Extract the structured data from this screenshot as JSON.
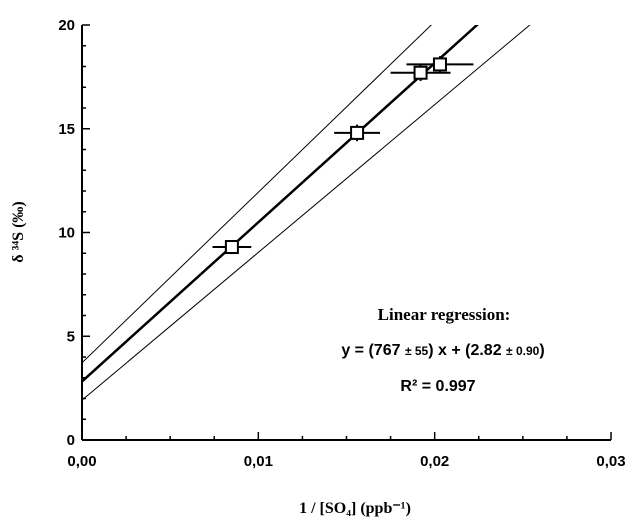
{
  "chart_data": {
    "type": "scatter",
    "xlabel": "1 / [SO₄]   (ppb⁻¹)",
    "ylabel": "δ ³⁴S (‰)",
    "xlim": [
      0,
      0.03
    ],
    "ylim": [
      0,
      20
    ],
    "x_ticks": [
      "0,00",
      "0,01",
      "0,02",
      "0,03"
    ],
    "y_ticks": [
      "0",
      "5",
      "10",
      "15",
      "20"
    ],
    "series": [
      {
        "marker": "open-square",
        "points": [
          {
            "x": 0.0085,
            "y": 9.3,
            "xerr": 0.0011,
            "yerr": 0.3
          },
          {
            "x": 0.0156,
            "y": 14.8,
            "xerr": 0.0013,
            "yerr": 0.4
          },
          {
            "x": 0.0192,
            "y": 17.7,
            "xerr": 0.0017,
            "yerr": 0.4
          },
          {
            "x": 0.0203,
            "y": 18.1,
            "xerr": 0.0019,
            "yerr": 0.4
          }
        ]
      }
    ],
    "regression": {
      "slope": 767,
      "intercept": 2.82
    },
    "confidence_lines": [
      {
        "slope": 822,
        "intercept": 3.72
      },
      {
        "slope": 712,
        "intercept": 1.92
      }
    ],
    "annotation": {
      "title": "Linear regression:",
      "eq_prefix": "y = (767 ",
      "eq_pm1": "± 55",
      "eq_mid": ") x + (2.82 ",
      "eq_pm2": "± 0.90",
      "eq_suffix": ")",
      "r2": "R² = 0.997"
    },
    "grid": false,
    "legend": "none"
  }
}
